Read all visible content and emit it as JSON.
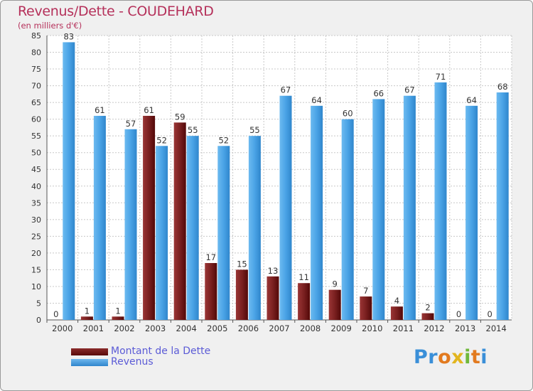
{
  "title": "Revenus/Dette - COUDEHARD",
  "subtitle": "(en milliers d'€)",
  "legend": {
    "dette": "Montant de la Dette",
    "revenus": "Revenus"
  },
  "logo": "Proxiti",
  "colors": {
    "dette": "#6e1a1a",
    "revenus": "#4aa3e6",
    "title": "#b5305a",
    "legend_text": "#5b5bd6"
  },
  "chart_data": {
    "type": "bar",
    "categories": [
      "2000",
      "2001",
      "2002",
      "2003",
      "2004",
      "2005",
      "2006",
      "2007",
      "2008",
      "2009",
      "2010",
      "2011",
      "2012",
      "2013",
      "2014"
    ],
    "series": [
      {
        "name": "Montant de la Dette",
        "values": [
          0,
          1,
          1,
          61,
          59,
          17,
          15,
          13,
          11,
          9,
          7,
          4,
          2,
          0,
          0
        ]
      },
      {
        "name": "Revenus",
        "values": [
          83,
          61,
          57,
          52,
          55,
          52,
          55,
          67,
          64,
          60,
          66,
          67,
          71,
          64,
          68
        ]
      }
    ],
    "ylim": [
      0,
      85
    ],
    "yticks": [
      0,
      5,
      10,
      15,
      20,
      25,
      30,
      35,
      40,
      45,
      50,
      55,
      60,
      65,
      70,
      75,
      80,
      85
    ],
    "grid": true,
    "legend_position": "bottom-left"
  }
}
